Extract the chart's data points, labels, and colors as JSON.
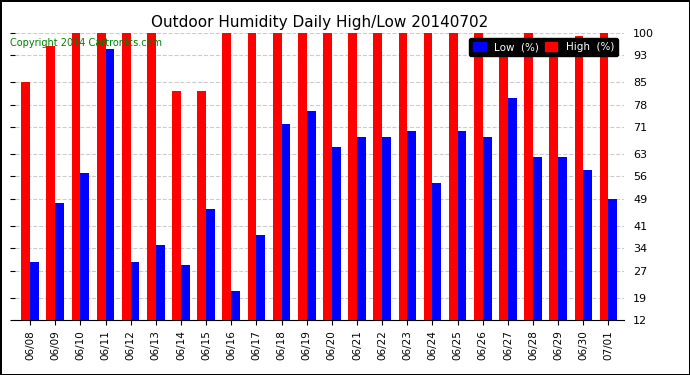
{
  "title": "Outdoor Humidity Daily High/Low 20140702",
  "copyright": "Copyright 2014 Cartronics.com",
  "xlabel": "",
  "ylabel": "",
  "background_color": "#ffffff",
  "plot_background": "#ffffff",
  "bar_width": 0.35,
  "ylim": [
    12,
    100
  ],
  "yticks": [
    12,
    19,
    27,
    34,
    41,
    49,
    56,
    63,
    71,
    78,
    85,
    93,
    100
  ],
  "grid_color": "#cccccc",
  "high_color": "#ff0000",
  "low_color": "#0000ff",
  "legend_labels": [
    "Low  (%)",
    "High  (%)"
  ],
  "dates": [
    "06/08",
    "06/09",
    "06/10",
    "06/11",
    "06/12",
    "06/13",
    "06/14",
    "06/15",
    "06/16",
    "06/17",
    "06/18",
    "06/19",
    "06/20",
    "06/21",
    "06/22",
    "06/23",
    "06/24",
    "06/25",
    "06/26",
    "06/27",
    "06/28",
    "06/29",
    "06/30",
    "07/01"
  ],
  "high": [
    85,
    96,
    100,
    100,
    100,
    100,
    82,
    82,
    100,
    100,
    100,
    100,
    100,
    100,
    100,
    100,
    100,
    100,
    100,
    98,
    100,
    97,
    99,
    100
  ],
  "low": [
    30,
    48,
    57,
    95,
    30,
    35,
    29,
    46,
    21,
    38,
    72,
    76,
    65,
    68,
    68,
    70,
    54,
    70,
    68,
    80,
    62,
    62,
    58,
    49
  ]
}
